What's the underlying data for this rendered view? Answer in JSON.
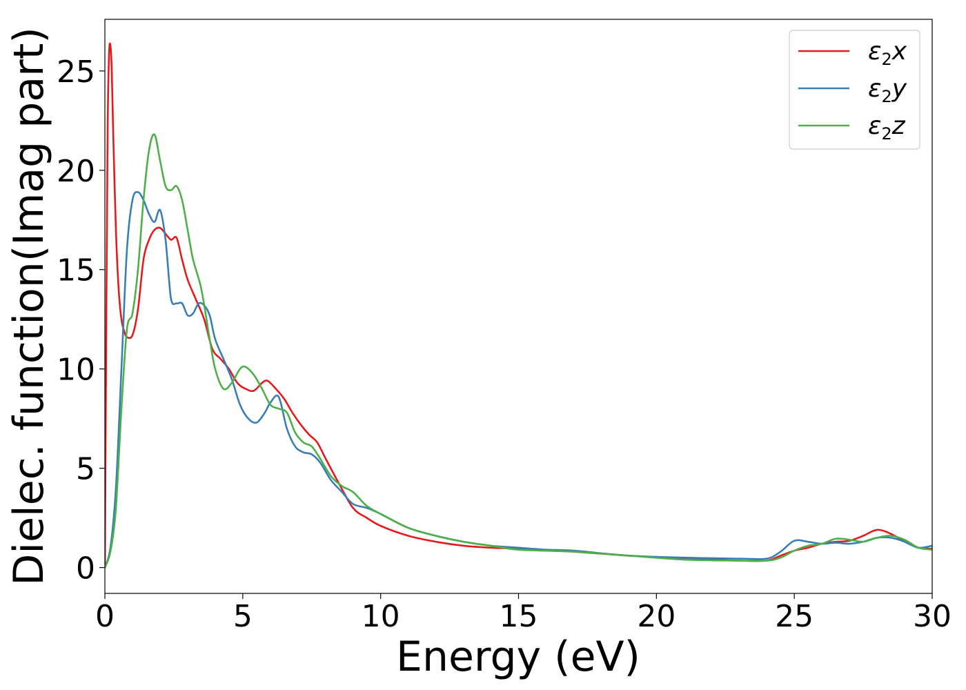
{
  "chart_data": {
    "type": "line",
    "title": "",
    "xlabel": "Energy (eV)",
    "ylabel": "Dielec. function(Imag part)",
    "xlim": [
      0,
      30
    ],
    "ylim": [
      -1.3,
      27.6
    ],
    "xticks": [
      0,
      5,
      10,
      15,
      20,
      25,
      30
    ],
    "yticks": [
      0,
      5,
      10,
      15,
      20,
      25
    ],
    "grid": false,
    "legend_position": "top-right",
    "series": [
      {
        "name": "ε2x",
        "legend_base": "ε",
        "legend_sub": "2",
        "legend_var": "x",
        "color": "#e41a1c",
        "x": [
          0,
          0.05,
          0.1,
          0.15,
          0.2,
          0.25,
          0.3,
          0.4,
          0.5,
          0.6,
          0.7,
          0.8,
          1.0,
          1.2,
          1.4,
          1.6,
          1.8,
          2.0,
          2.2,
          2.4,
          2.6,
          2.8,
          3.0,
          3.3,
          3.6,
          3.9,
          4.2,
          4.5,
          4.8,
          5.1,
          5.4,
          5.7,
          5.9,
          6.2,
          6.5,
          6.8,
          7.1,
          7.4,
          7.7,
          8.0,
          8.5,
          9.0,
          9.5,
          10.0,
          11.0,
          12.0,
          13.0,
          14.0,
          15.0,
          17.0,
          19.0,
          21.0,
          23.0,
          24.0,
          24.5,
          25.0,
          25.5,
          26.0,
          26.5,
          27.0,
          27.5,
          28.0,
          28.5,
          29.0,
          29.5,
          30.0
        ],
        "values": [
          0.0,
          12.0,
          22.0,
          25.8,
          26.3,
          25.0,
          22.0,
          17.0,
          14.0,
          12.5,
          11.9,
          11.6,
          11.7,
          13.0,
          15.5,
          16.5,
          17.0,
          17.1,
          16.8,
          16.5,
          16.6,
          15.5,
          14.5,
          13.5,
          12.5,
          11.0,
          10.5,
          10.0,
          9.3,
          9.0,
          8.9,
          9.3,
          9.4,
          9.0,
          8.5,
          7.8,
          7.2,
          6.7,
          6.3,
          5.5,
          4.2,
          3.0,
          2.5,
          2.1,
          1.6,
          1.3,
          1.1,
          1.0,
          0.95,
          0.8,
          0.6,
          0.45,
          0.35,
          0.35,
          0.6,
          0.85,
          1.0,
          1.2,
          1.3,
          1.35,
          1.6,
          1.9,
          1.7,
          1.3,
          1.0,
          0.95
        ]
      },
      {
        "name": "ε2y",
        "legend_base": "ε",
        "legend_sub": "2",
        "legend_var": "y",
        "color": "#377eb8",
        "x": [
          0,
          0.2,
          0.4,
          0.6,
          0.8,
          1.0,
          1.2,
          1.4,
          1.6,
          1.8,
          2.0,
          2.2,
          2.4,
          2.6,
          2.8,
          3.0,
          3.2,
          3.4,
          3.6,
          3.8,
          4.0,
          4.3,
          4.6,
          4.9,
          5.2,
          5.5,
          5.8,
          6.0,
          6.3,
          6.6,
          6.9,
          7.2,
          7.5,
          7.8,
          8.2,
          8.6,
          9.0,
          9.5,
          10.0,
          11.0,
          12.0,
          13.0,
          14.0,
          15.0,
          16.0,
          17.0,
          19.0,
          21.0,
          23.0,
          24.0,
          24.5,
          25.0,
          25.5,
          26.0,
          26.5,
          27.0,
          27.5,
          28.0,
          28.5,
          29.0,
          29.5,
          30.0
        ],
        "values": [
          0.0,
          1.0,
          4.0,
          10.0,
          16.0,
          18.5,
          18.9,
          18.5,
          17.8,
          17.4,
          18.0,
          16.5,
          13.5,
          13.3,
          13.3,
          12.7,
          12.8,
          13.3,
          13.2,
          12.7,
          11.5,
          10.5,
          9.5,
          8.2,
          7.5,
          7.3,
          7.8,
          8.3,
          8.6,
          7.0,
          6.1,
          5.8,
          5.7,
          5.3,
          4.4,
          3.8,
          3.2,
          3.0,
          2.7,
          2.0,
          1.6,
          1.3,
          1.1,
          1.0,
          0.9,
          0.85,
          0.6,
          0.5,
          0.45,
          0.45,
          0.8,
          1.35,
          1.3,
          1.2,
          1.25,
          1.2,
          1.3,
          1.5,
          1.5,
          1.3,
          1.0,
          1.1
        ]
      },
      {
        "name": "ε2z",
        "legend_base": "ε",
        "legend_sub": "2",
        "legend_var": "z",
        "color": "#4daf4a",
        "x": [
          0,
          0.2,
          0.4,
          0.6,
          0.8,
          1.0,
          1.2,
          1.4,
          1.6,
          1.8,
          2.0,
          2.2,
          2.4,
          2.6,
          2.8,
          3.0,
          3.2,
          3.5,
          3.8,
          4.0,
          4.3,
          4.6,
          4.9,
          5.1,
          5.4,
          5.7,
          6.0,
          6.3,
          6.6,
          6.9,
          7.2,
          7.5,
          7.8,
          8.2,
          8.6,
          9.0,
          9.5,
          10.0,
          11.0,
          12.0,
          13.0,
          14.0,
          15.0,
          17.0,
          19.0,
          21.0,
          23.0,
          24.0,
          24.5,
          25.0,
          25.5,
          26.0,
          26.5,
          27.0,
          27.5,
          28.0,
          28.5,
          29.0,
          29.5,
          30.0
        ],
        "values": [
          0.0,
          0.8,
          3.0,
          8.0,
          12.0,
          12.8,
          15.0,
          18.5,
          21.0,
          21.8,
          20.5,
          19.2,
          19.0,
          19.2,
          18.5,
          17.0,
          15.5,
          14.0,
          11.5,
          10.0,
          9.0,
          9.3,
          10.0,
          10.1,
          9.7,
          9.0,
          8.2,
          8.0,
          7.8,
          6.8,
          6.3,
          6.1,
          5.5,
          4.6,
          4.1,
          3.8,
          3.1,
          2.7,
          2.0,
          1.6,
          1.3,
          1.1,
          0.9,
          0.8,
          0.6,
          0.4,
          0.35,
          0.35,
          0.5,
          0.85,
          1.1,
          1.2,
          1.45,
          1.4,
          1.3,
          1.5,
          1.6,
          1.4,
          1.0,
          0.9
        ]
      }
    ]
  }
}
